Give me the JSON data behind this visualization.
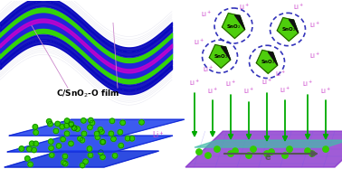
{
  "background_color": "#ffffff",
  "wave_blue_outer": "#0000cc",
  "wave_blue_mid": "#2222ee",
  "wave_green": "#33dd00",
  "wave_purple": "#cc00cc",
  "crystal_green": "#44cc00",
  "crystal_dark": "#111111",
  "crystal_text": "#000000",
  "dashed_color": "#3333bb",
  "li_color": "#cc44cc",
  "arrow_green": "#00aa00",
  "sheet_blue": "#2244ee",
  "sheet_purple": "#8833cc",
  "sheet_teal": "#44bbaa",
  "dot_green": "#33cc00",
  "electron_gray": "#555555",
  "label_color": "#000000",
  "shadow_color": "#aaaacc"
}
